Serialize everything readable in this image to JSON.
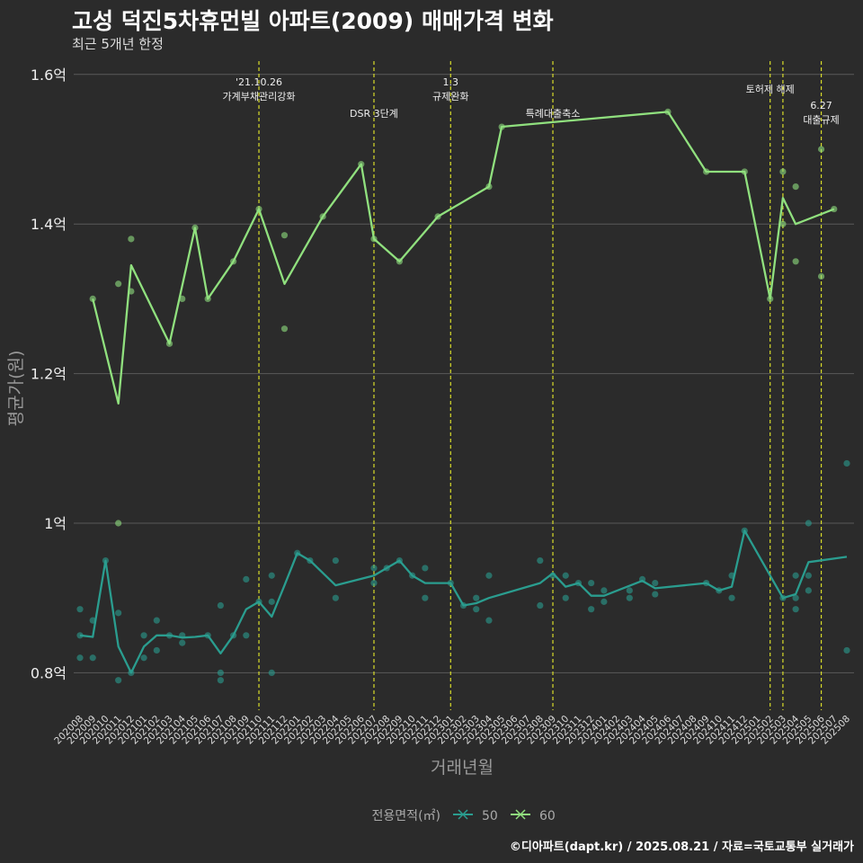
{
  "chart_data": {
    "type": "line",
    "title": "고성 덕진5차휴먼빌 아파트(2009) 매매가격 변화",
    "subtitle": "최근 5개년 한정",
    "xlabel": "거래년월",
    "ylabel": "평균가(원)",
    "caption": "©디아파트(dapt.kr) / 2025.08.21 / 자료=국토교통부 실거래가",
    "legend_title": "전용면적(㎡)",
    "legend_position": "bottom",
    "grid": true,
    "ylim": [
      0.75,
      1.625
    ],
    "y_ticks": [
      {
        "value": 0.8,
        "label": "0.8억"
      },
      {
        "value": 1.0,
        "label": "1억"
      },
      {
        "value": 1.2,
        "label": "1.2억"
      },
      {
        "value": 1.4,
        "label": "1.4억"
      },
      {
        "value": 1.6,
        "label": "1.6억"
      }
    ],
    "categories": [
      "202008",
      "202009",
      "202010",
      "202011",
      "202012",
      "202101",
      "202102",
      "202103",
      "202104",
      "202105",
      "202106",
      "202107",
      "202108",
      "202109",
      "202110",
      "202111",
      "202112",
      "202201",
      "202202",
      "202203",
      "202204",
      "202205",
      "202206",
      "202207",
      "202208",
      "202209",
      "202210",
      "202211",
      "202212",
      "202301",
      "202302",
      "202303",
      "202304",
      "202305",
      "202306",
      "202307",
      "202308",
      "202309",
      "202310",
      "202311",
      "202312",
      "202401",
      "202402",
      "202403",
      "202404",
      "202405",
      "202406",
      "202407",
      "202408",
      "202409",
      "202410",
      "202411",
      "202412",
      "202501",
      "202502",
      "202503",
      "202504",
      "202505",
      "202506",
      "202507",
      "202508"
    ],
    "series": [
      {
        "name": "50",
        "color": "#2a9d8f",
        "line": [
          [
            0,
            0.85
          ],
          [
            1,
            0.848
          ],
          [
            2,
            0.95
          ],
          [
            3,
            0.835
          ],
          [
            4,
            0.8
          ],
          [
            5,
            0.835
          ],
          [
            6,
            0.85
          ],
          [
            7,
            0.85
          ],
          [
            8,
            0.847
          ],
          [
            9,
            0.848
          ],
          [
            10,
            0.85
          ],
          [
            11,
            0.826
          ],
          [
            12,
            0.85
          ],
          [
            13,
            0.885
          ],
          [
            14,
            0.895
          ],
          [
            15,
            0.875
          ],
          [
            16,
            0.917
          ],
          [
            17,
            0.96
          ],
          [
            18,
            0.95
          ],
          [
            20,
            0.917
          ],
          [
            23,
            0.93
          ],
          [
            24,
            0.94
          ],
          [
            25,
            0.95
          ],
          [
            26,
            0.93
          ],
          [
            27,
            0.92
          ],
          [
            29,
            0.92
          ],
          [
            30,
            0.89
          ],
          [
            31,
            0.893
          ],
          [
            32,
            0.9
          ],
          [
            36,
            0.92
          ],
          [
            37,
            0.933
          ],
          [
            38,
            0.915
          ],
          [
            39,
            0.92
          ],
          [
            40,
            0.903
          ],
          [
            41,
            0.903
          ],
          [
            44,
            0.923
          ],
          [
            45,
            0.913
          ],
          [
            49,
            0.92
          ],
          [
            50,
            0.91
          ],
          [
            51,
            0.915
          ],
          [
            52,
            0.99
          ],
          [
            55,
            0.9
          ],
          [
            56,
            0.905
          ],
          [
            57,
            0.948
          ],
          [
            60,
            0.955
          ]
        ],
        "points": [
          [
            0,
            0.885
          ],
          [
            0,
            0.85
          ],
          [
            0,
            0.82
          ],
          [
            1,
            0.87
          ],
          [
            1,
            0.82
          ],
          [
            2,
            0.95
          ],
          [
            3,
            0.88
          ],
          [
            3,
            0.79
          ],
          [
            4,
            0.8
          ],
          [
            5,
            0.82
          ],
          [
            5,
            0.85
          ],
          [
            6,
            0.87
          ],
          [
            6,
            0.83
          ],
          [
            7,
            0.85
          ],
          [
            8,
            0.85
          ],
          [
            8,
            0.84
          ],
          [
            10,
            0.85
          ],
          [
            11,
            0.89
          ],
          [
            11,
            0.8
          ],
          [
            11,
            0.79
          ],
          [
            12,
            0.85
          ],
          [
            13,
            0.925
          ],
          [
            13,
            0.85
          ],
          [
            14,
            0.895
          ],
          [
            15,
            0.93
          ],
          [
            15,
            0.895
          ],
          [
            15,
            0.8
          ],
          [
            17,
            0.96
          ],
          [
            18,
            0.95
          ],
          [
            20,
            0.95
          ],
          [
            20,
            0.9
          ],
          [
            23,
            0.94
          ],
          [
            23,
            0.92
          ],
          [
            24,
            0.94
          ],
          [
            25,
            0.95
          ],
          [
            26,
            0.93
          ],
          [
            27,
            0.94
          ],
          [
            27,
            0.9
          ],
          [
            29,
            0.92
          ],
          [
            30,
            0.89
          ],
          [
            31,
            0.9
          ],
          [
            31,
            0.885
          ],
          [
            32,
            0.93
          ],
          [
            32,
            0.87
          ],
          [
            36,
            0.95
          ],
          [
            36,
            0.89
          ],
          [
            37,
            0.93
          ],
          [
            38,
            0.93
          ],
          [
            38,
            0.9
          ],
          [
            39,
            0.92
          ],
          [
            40,
            0.92
          ],
          [
            40,
            0.885
          ],
          [
            41,
            0.91
          ],
          [
            41,
            0.895
          ],
          [
            43,
            0.91
          ],
          [
            43,
            0.9
          ],
          [
            44,
            0.925
          ],
          [
            45,
            0.92
          ],
          [
            45,
            0.905
          ],
          [
            49,
            0.92
          ],
          [
            50,
            0.91
          ],
          [
            51,
            0.93
          ],
          [
            51,
            0.9
          ],
          [
            52,
            0.99
          ],
          [
            55,
            0.9
          ],
          [
            56,
            0.93
          ],
          [
            56,
            0.9
          ],
          [
            56,
            0.885
          ],
          [
            57,
            1.0
          ],
          [
            57,
            0.93
          ],
          [
            57,
            0.91
          ],
          [
            60,
            1.08
          ],
          [
            60,
            0.83
          ]
        ]
      },
      {
        "name": "60",
        "color": "#90e07e",
        "line": [
          [
            1,
            1.3
          ],
          [
            3,
            1.16
          ],
          [
            4,
            1.345
          ],
          [
            7,
            1.24
          ],
          [
            9,
            1.395
          ],
          [
            10,
            1.3
          ],
          [
            12,
            1.35
          ],
          [
            14,
            1.42
          ],
          [
            16,
            1.32
          ],
          [
            19,
            1.41
          ],
          [
            22,
            1.48
          ],
          [
            23,
            1.38
          ],
          [
            25,
            1.35
          ],
          [
            28,
            1.41
          ],
          [
            32,
            1.45
          ],
          [
            33,
            1.53
          ],
          [
            46,
            1.55
          ],
          [
            49,
            1.47
          ],
          [
            52,
            1.47
          ],
          [
            54,
            1.3
          ],
          [
            55,
            1.435
          ],
          [
            56,
            1.4
          ],
          [
            59,
            1.42
          ]
        ],
        "points": [
          [
            1,
            1.3
          ],
          [
            3,
            1.32
          ],
          [
            3,
            1.0
          ],
          [
            4,
            1.38
          ],
          [
            4,
            1.31
          ],
          [
            7,
            1.24
          ],
          [
            8,
            1.3
          ],
          [
            9,
            1.395
          ],
          [
            10,
            1.3
          ],
          [
            12,
            1.35
          ],
          [
            14,
            1.42
          ],
          [
            16,
            1.385
          ],
          [
            16,
            1.26
          ],
          [
            19,
            1.41
          ],
          [
            22,
            1.48
          ],
          [
            23,
            1.38
          ],
          [
            25,
            1.35
          ],
          [
            28,
            1.41
          ],
          [
            32,
            1.45
          ],
          [
            33,
            1.53
          ],
          [
            46,
            1.55
          ],
          [
            49,
            1.47
          ],
          [
            52,
            1.47
          ],
          [
            54,
            1.3
          ],
          [
            55,
            1.47
          ],
          [
            55,
            1.4
          ],
          [
            56,
            1.45
          ],
          [
            56,
            1.35
          ],
          [
            58,
            1.5
          ],
          [
            58,
            1.33
          ],
          [
            59,
            1.42
          ]
        ]
      }
    ],
    "events": [
      {
        "x": 14,
        "label": "'21.10.26\n가계부채관리강화"
      },
      {
        "x": 23,
        "label": "DSR 3단계"
      },
      {
        "x": 29,
        "label": "1.3\n규제완화"
      },
      {
        "x": 37,
        "label": "특례대출축소"
      },
      {
        "x": 54,
        "label": "토허제 해제"
      },
      {
        "x": 55,
        "label": ""
      },
      {
        "x": 58,
        "label": "6.27\n대출규제"
      }
    ]
  }
}
